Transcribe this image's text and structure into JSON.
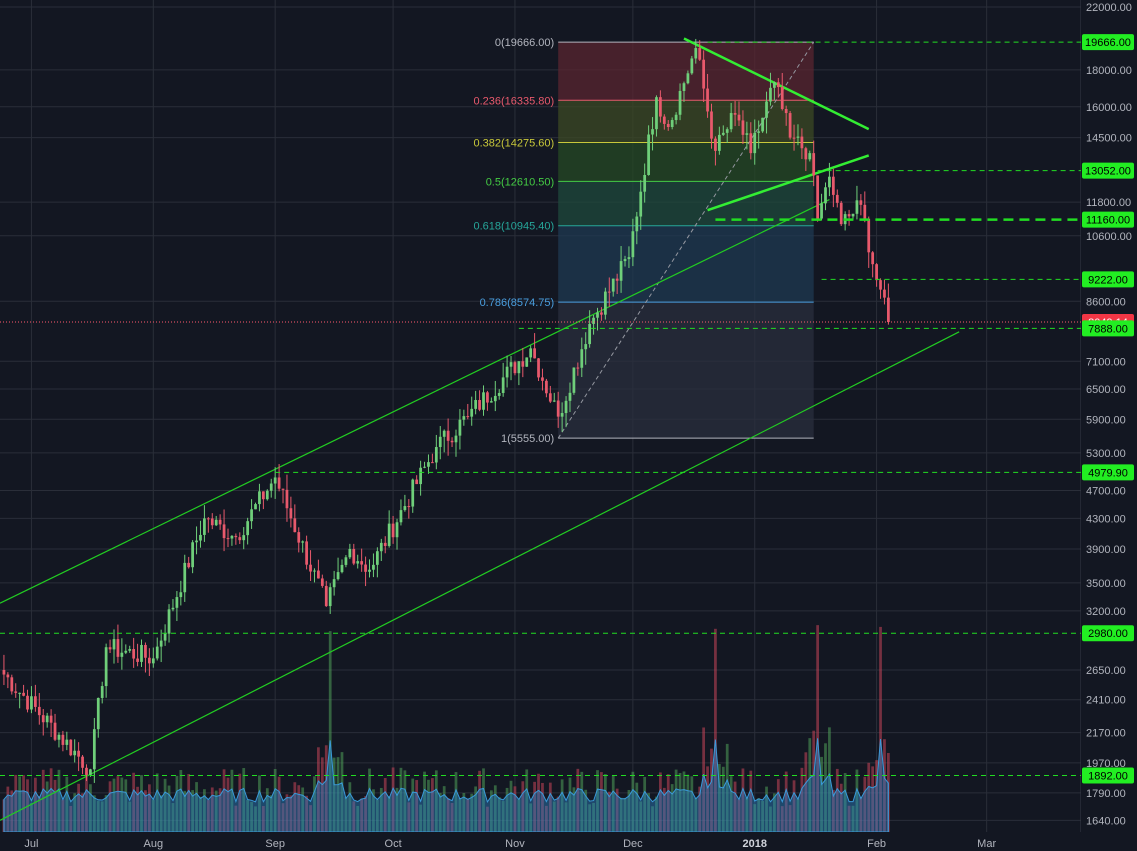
{
  "chart_data": {
    "type": "candlestick",
    "instrument": "BTC",
    "interval": "1D",
    "scale": "log",
    "grid": true,
    "colors": {
      "background": "#131722",
      "grid": "#2a2e39",
      "up": "#6fcf7a",
      "down": "#e8596c",
      "price_line": "#ff5a6e",
      "level_line": "#22dd22",
      "channel": "#22cc22",
      "triangle": "#33ee33",
      "volume_area": "#2d86c8",
      "axis_text": "#b2b5be"
    },
    "x_axis": {
      "ticks": [
        "Jul",
        "Aug",
        "Sep",
        "Oct",
        "Nov",
        "Dec",
        "2018",
        "Feb",
        "Mar"
      ],
      "range": [
        "2017-06-23",
        "2018-03-25"
      ]
    },
    "y_axis": {
      "ticks": [
        "22000.00",
        "19666.00",
        "18000.00",
        "16000.00",
        "14500.00",
        "13052.00",
        "11800.00",
        "11160.00",
        "10600.00",
        "9222.00",
        "8600.00",
        "8049.14",
        "7888.00",
        "7100.00",
        "6500.00",
        "5900.00",
        "5300.00",
        "4979.90",
        "4700.00",
        "4300.00",
        "3900.00",
        "3500.00",
        "3200.00",
        "2980.00",
        "2650.00",
        "2410.00",
        "2170.00",
        "1970.00",
        "1892.00",
        "1790.00",
        "1640.00"
      ],
      "range": [
        1580,
        22500
      ]
    },
    "price_labels": [
      {
        "value": 19666.0,
        "text": "19666.00",
        "style": "green"
      },
      {
        "value": 13052.0,
        "text": "13052.00",
        "style": "green"
      },
      {
        "value": 11160.0,
        "text": "11160.00",
        "style": "green"
      },
      {
        "value": 9222.0,
        "text": "9222.00",
        "style": "green"
      },
      {
        "value": 8049.14,
        "text": "8049.14",
        "style": "red"
      },
      {
        "value": 7888.0,
        "text": "7888.00",
        "style": "green"
      },
      {
        "value": 4979.9,
        "text": "4979.90",
        "style": "green"
      },
      {
        "value": 2980.0,
        "text": "2980.00",
        "style": "green"
      },
      {
        "value": 1892.0,
        "text": "1892.00",
        "style": "green"
      }
    ],
    "fibonacci": {
      "from": {
        "date": "2017-11-12",
        "price": 5555.0
      },
      "to": {
        "date": "2017-12-17",
        "price": 19666.0
      },
      "end_date": "2018-01-16",
      "levels": [
        {
          "ratio": "0",
          "price": 19666.0,
          "label": "0(19666.00)",
          "color": "#b2b5be",
          "fill": "#5a2530"
        },
        {
          "ratio": "0.236",
          "price": 16335.8,
          "label": "0.236(16335.80)",
          "color": "#e8596c",
          "fill": "#3c4a24"
        },
        {
          "ratio": "0.382",
          "price": 14275.6,
          "label": "0.382(14275.60)",
          "color": "#c8c83a",
          "fill": "#254a24"
        },
        {
          "ratio": "0.5",
          "price": 12610.5,
          "label": "0.5(12610.50)",
          "color": "#44cc44",
          "fill": "#1f4a3c"
        },
        {
          "ratio": "0.618",
          "price": 10945.4,
          "label": "0.618(10945.40)",
          "color": "#26a69a",
          "fill": "#1f3a52"
        },
        {
          "ratio": "0.786",
          "price": 8574.75,
          "label": "0.786(8574.75)",
          "color": "#4a9fe0",
          "fill": "#2a2f3e"
        },
        {
          "ratio": "1",
          "price": 5555.0,
          "label": "1(5555.00)",
          "color": "#b2b5be",
          "fill": null
        }
      ]
    },
    "trendlines": [
      {
        "name": "channel-upper",
        "from": {
          "date": "2017-06-23",
          "price": 3280
        },
        "to": {
          "date": "2018-01-20",
          "price": 11900
        }
      },
      {
        "name": "channel-lower",
        "from": {
          "date": "2017-06-23",
          "price": 1640
        },
        "to": {
          "date": "2018-02-22",
          "price": 7800
        }
      },
      {
        "name": "triangle-upper",
        "from": {
          "date": "2017-12-14",
          "price": 19900
        },
        "to": {
          "date": "2018-01-30",
          "price": 14900
        }
      },
      {
        "name": "triangle-lower",
        "from": {
          "date": "2017-12-20",
          "price": 11500
        },
        "to": {
          "date": "2018-01-30",
          "price": 13700
        }
      }
    ],
    "horizontal_levels": [
      {
        "price": 19666.0,
        "from": "2017-12-20",
        "style": "dash"
      },
      {
        "price": 13052.0,
        "from": "2018-01-17",
        "style": "dash"
      },
      {
        "price": 11160.0,
        "from": "2017-12-22",
        "style": "dash-bold"
      },
      {
        "price": 9222.0,
        "from": "2018-01-18",
        "style": "dash"
      },
      {
        "price": 7888.0,
        "from": "2017-11-02",
        "style": "dash"
      },
      {
        "price": 4979.9,
        "from": "2017-09-01",
        "style": "dash"
      },
      {
        "price": 2980.0,
        "from": "2017-06-23",
        "style": "dash"
      },
      {
        "price": 1892.0,
        "from": "2017-06-23",
        "style": "dash"
      }
    ],
    "key_points": [
      {
        "date": "2017-06-23",
        "close": 2650
      },
      {
        "date": "2017-07-16",
        "close": 1930
      },
      {
        "date": "2017-07-20",
        "close": 2850
      },
      {
        "date": "2017-08-01",
        "close": 2750
      },
      {
        "date": "2017-08-14",
        "close": 4300
      },
      {
        "date": "2017-08-22",
        "close": 4050
      },
      {
        "date": "2017-09-01",
        "close": 4900
      },
      {
        "date": "2017-09-14",
        "close": 3250
      },
      {
        "date": "2017-09-20",
        "close": 3900
      },
      {
        "date": "2017-09-25",
        "close": 3650
      },
      {
        "date": "2017-10-12",
        "close": 5400
      },
      {
        "date": "2017-10-20",
        "close": 5950
      },
      {
        "date": "2017-11-05",
        "close": 7400
      },
      {
        "date": "2017-11-12",
        "close": 5950
      },
      {
        "date": "2017-11-20",
        "close": 8000
      },
      {
        "date": "2017-11-30",
        "close": 9900
      },
      {
        "date": "2017-12-07",
        "close": 16500
      },
      {
        "date": "2017-12-10",
        "close": 15000
      },
      {
        "date": "2017-12-17",
        "close": 19300
      },
      {
        "date": "2017-12-22",
        "close": 13900
      },
      {
        "date": "2017-12-27",
        "close": 15600
      },
      {
        "date": "2017-12-31",
        "close": 13800
      },
      {
        "date": "2018-01-06",
        "close": 17300
      },
      {
        "date": "2018-01-10",
        "close": 14500
      },
      {
        "date": "2018-01-15",
        "close": 13800
      },
      {
        "date": "2018-01-17",
        "close": 11200
      },
      {
        "date": "2018-01-20",
        "close": 12800
      },
      {
        "date": "2018-01-23",
        "close": 11000
      },
      {
        "date": "2018-01-28",
        "close": 11700
      },
      {
        "date": "2018-02-01",
        "close": 9200
      },
      {
        "date": "2018-02-03",
        "close": 8700
      },
      {
        "date": "2018-02-04",
        "close": 8049.14
      }
    ],
    "volume_spike_dates": [
      "2017-09-15",
      "2017-12-22",
      "2018-01-17",
      "2018-02-02"
    ]
  }
}
